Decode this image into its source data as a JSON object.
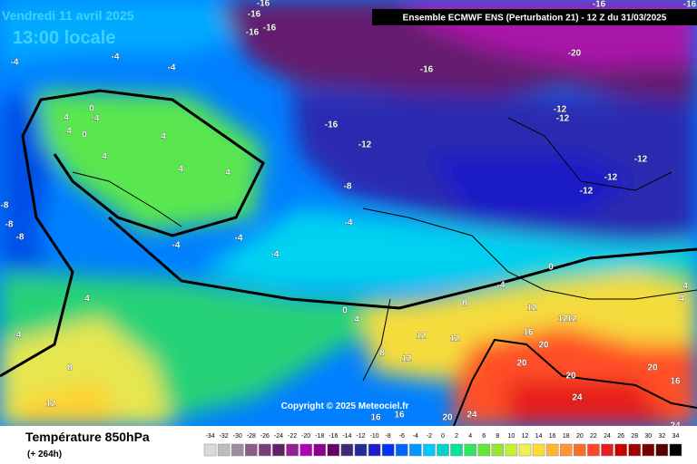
{
  "header": {
    "date": "Vendredi 11 avril 2025",
    "time": "13:00 locale",
    "run": "Ensemble ECMWF ENS  (Perturbation 21)  -  12 Z du 31/03/2025"
  },
  "copyright": "Copyright © 2025 Meteociel.fr",
  "legend": {
    "title": "Température 850hPa",
    "lead": "(+ 264h)",
    "values": [
      -34,
      -32,
      -30,
      -28,
      -26,
      -24,
      -22,
      -20,
      -18,
      -16,
      -14,
      -12,
      -10,
      -8,
      -6,
      -4,
      -2,
      0,
      2,
      4,
      6,
      8,
      10,
      12,
      14,
      16,
      18,
      20,
      22,
      24,
      26,
      28,
      30,
      32,
      34
    ],
    "colors": [
      "#d9d9d9",
      "#bdbdbd",
      "#a08ca0",
      "#8c5a8c",
      "#783c78",
      "#641e64",
      "#961e96",
      "#b400b4",
      "#8c008c",
      "#640064",
      "#3c2878",
      "#282896",
      "#1e1ec8",
      "#0032ff",
      "#0064ff",
      "#0096ff",
      "#00c8ff",
      "#00d2c8",
      "#00e696",
      "#32e664",
      "#64e632",
      "#96e632",
      "#c8f032",
      "#f0f050",
      "#ffdc32",
      "#ffb432",
      "#ff9632",
      "#ff6e28",
      "#ff4628",
      "#e61e1e",
      "#c80000",
      "#a00000",
      "#780000",
      "#500000",
      "#000000"
    ]
  },
  "contour_labels": [
    -16,
    -16,
    -16,
    -16,
    -16,
    -16,
    -20,
    -16,
    -4,
    -4,
    -4,
    -16,
    -12,
    -12,
    -12,
    -12,
    -12,
    -12,
    -8,
    0,
    4,
    -4,
    0,
    4,
    4,
    4,
    4,
    4,
    -8,
    -8,
    -8,
    -4,
    -4,
    -4,
    -4,
    0,
    -4,
    0,
    4,
    -4,
    4,
    8,
    12,
    12,
    12,
    12,
    12,
    8,
    12,
    16,
    20,
    20,
    20,
    20,
    16,
    24,
    8,
    12,
    24,
    20,
    16,
    16,
    24,
    4,
    4
  ]
}
